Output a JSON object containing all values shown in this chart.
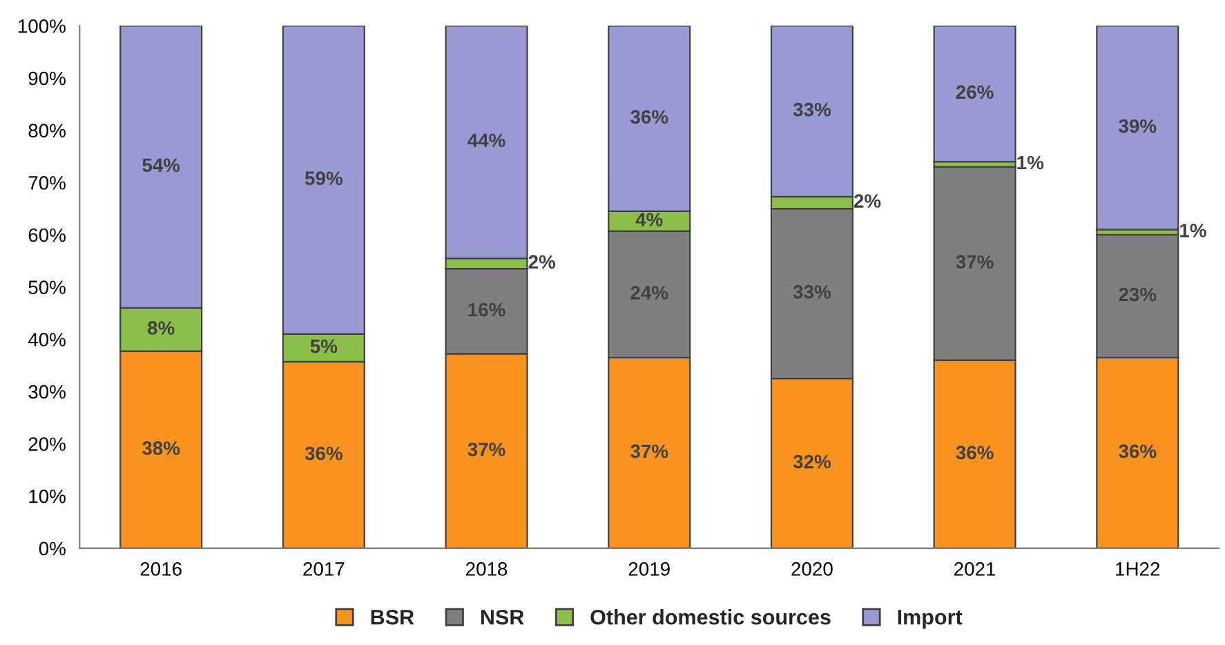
{
  "chart_data": {
    "type": "bar",
    "stacked": true,
    "categories": [
      "2016",
      "2017",
      "2018",
      "2019",
      "2020",
      "2021",
      "1H22"
    ],
    "series": [
      {
        "name": "BSR",
        "color": "#f7931e",
        "values": [
          37.7,
          35.7,
          37.2,
          36.5,
          32.5,
          36,
          36.5
        ],
        "value_labels": [
          "38%",
          "36%",
          "37%",
          "37%",
          "32%",
          "36%",
          "36%"
        ]
      },
      {
        "name": "NSR",
        "color": "#7f7f7f",
        "values": [
          null,
          null,
          16.3,
          24.2,
          32.5,
          37,
          23.5
        ],
        "value_labels": [
          null,
          null,
          "16%",
          "24%",
          "33%",
          "37%",
          "23%"
        ]
      },
      {
        "name": "Other domestic sources",
        "color": "#8cbf4a",
        "values": [
          8.3,
          5.3,
          2.0,
          3.8,
          2.3,
          1.0,
          1.0
        ],
        "value_labels": [
          "8%",
          "5%",
          "2%",
          "4%",
          "2%",
          "1%",
          "1%"
        ]
      },
      {
        "name": "Import",
        "color": "#9999d4",
        "values": [
          54,
          59,
          44.5,
          35.5,
          32.7,
          26,
          39
        ],
        "value_labels": [
          "54%",
          "59%",
          "44%",
          "36%",
          "33%",
          "26%",
          "39%"
        ]
      }
    ],
    "ylim": [
      0,
      100
    ],
    "yticks": [
      {
        "value": 0,
        "label": "0%"
      },
      {
        "value": 10,
        "label": "10%"
      },
      {
        "value": 20,
        "label": "20%"
      },
      {
        "value": 30,
        "label": "30%"
      },
      {
        "value": 40,
        "label": "40%"
      },
      {
        "value": 50,
        "label": "50%"
      },
      {
        "value": 60,
        "label": "60%"
      },
      {
        "value": 70,
        "label": "70%"
      },
      {
        "value": 80,
        "label": "80%"
      },
      {
        "value": 90,
        "label": "90%"
      },
      {
        "value": 100,
        "label": "100%"
      }
    ],
    "grid": false,
    "legend": "bottom"
  }
}
